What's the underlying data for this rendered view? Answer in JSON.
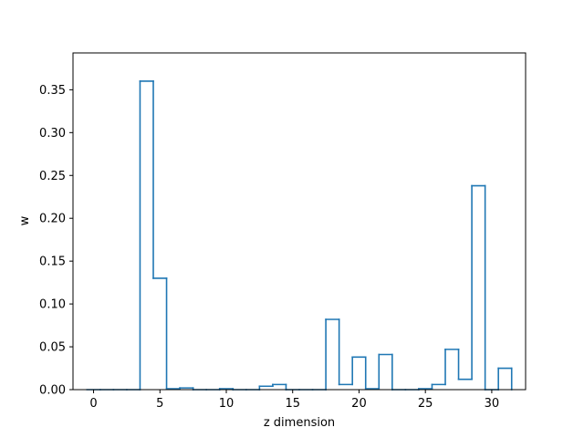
{
  "chart_data": {
    "type": "histogram-step",
    "title": "",
    "xlabel": "z dimension",
    "ylabel": "w",
    "xlim": [
      -1.55,
      32.55
    ],
    "ylim": [
      0,
      0.393
    ],
    "x_ticks": [
      0,
      5,
      10,
      15,
      20,
      25,
      30
    ],
    "y_ticks": [
      0.0,
      0.05,
      0.1,
      0.15,
      0.2,
      0.25,
      0.3,
      0.35
    ],
    "grid": false,
    "line_color": "#1f77b4",
    "bin_width": 1,
    "categories": [
      0,
      1,
      2,
      3,
      4,
      5,
      6,
      7,
      8,
      9,
      10,
      11,
      12,
      13,
      14,
      15,
      16,
      17,
      18,
      19,
      20,
      21,
      22,
      23,
      24,
      25,
      26,
      27,
      28,
      29,
      30,
      31
    ],
    "values": [
      0.0,
      0.0,
      0.0,
      0.0,
      0.36,
      0.13,
      0.001,
      0.002,
      0.0,
      0.0,
      0.001,
      0.0,
      0.0,
      0.004,
      0.006,
      0.0,
      0.0,
      0.0,
      0.082,
      0.006,
      0.038,
      0.001,
      0.041,
      0.0,
      0.0,
      0.001,
      0.006,
      0.047,
      0.012,
      0.238,
      0.0,
      0.025
    ]
  }
}
